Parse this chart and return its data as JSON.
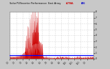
{
  "title": "Solar PV/Inverter Performance  East Array",
  "legend_text": "ACTUAL",
  "bg_color": "#c8c8c8",
  "plot_bg": "#ffffff",
  "bar_color": "#cc0000",
  "avg_line_color": "#0000ff",
  "grid_color": "#aaaaaa",
  "y_max": 8,
  "avg_line_y": 0.55,
  "legend_colors": [
    "#cc0000",
    "#0000cc"
  ],
  "legend_labels": [
    "Actual kW",
    "Avg kW"
  ]
}
